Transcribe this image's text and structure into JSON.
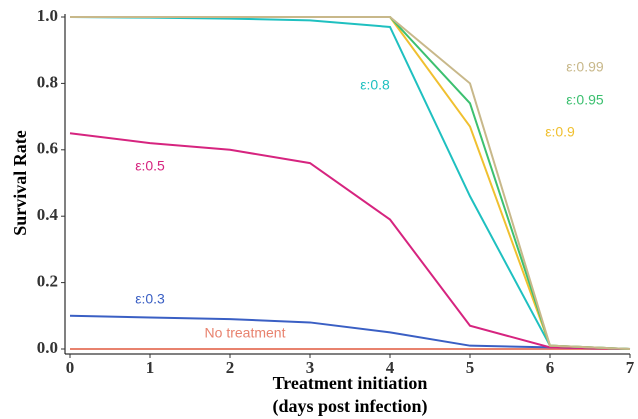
{
  "chart_data": {
    "type": "line",
    "ylabel": "Survival Rate",
    "xlabel": [
      "Treatment initiation",
      "(days post infection)"
    ],
    "x": [
      0,
      1,
      2,
      3,
      4,
      5,
      6,
      7
    ],
    "xlim": [
      0,
      7
    ],
    "xticks": [
      0,
      1,
      2,
      3,
      4,
      5,
      6,
      7
    ],
    "ylim": [
      0,
      1
    ],
    "yticks": [
      {
        "value": 0,
        "label": "0.0"
      },
      0.2,
      0.4,
      0.6,
      0.8,
      {
        "value": 1,
        "label": "1.0"
      }
    ],
    "grid": false,
    "series": [
      {
        "name": "No treatment",
        "color": "#e8826e",
        "values": [
          0,
          0,
          0,
          0,
          0,
          0,
          0,
          0
        ]
      },
      {
        "name": "ε:0.3",
        "color": "#3a5fc4",
        "values": [
          0.1,
          0.095,
          0.09,
          0.08,
          0.05,
          0.01,
          0.005,
          0
        ]
      },
      {
        "name": "ε:0.5",
        "color": "#d6247f",
        "values": [
          0.65,
          0.62,
          0.6,
          0.56,
          0.39,
          0.07,
          0.005,
          0
        ]
      },
      {
        "name": "ε:0.8",
        "color": "#1fc0c0",
        "values": [
          1.0,
          0.998,
          0.995,
          0.99,
          0.97,
          0.46,
          0.01,
          0
        ]
      },
      {
        "name": "ε:0.9",
        "color": "#f0c030",
        "values": [
          1.0,
          1.0,
          1.0,
          1.0,
          1.0,
          0.67,
          0.01,
          0
        ]
      },
      {
        "name": "ε:0.95",
        "color": "#3cc070",
        "values": [
          1.0,
          1.0,
          1.0,
          1.0,
          1.0,
          0.74,
          0.01,
          0
        ]
      },
      {
        "name": "ε:0.99",
        "color": "#c8b88a",
        "values": [
          1.0,
          1.0,
          1.0,
          1.0,
          1.0,
          0.8,
          0.01,
          0
        ]
      }
    ]
  }
}
